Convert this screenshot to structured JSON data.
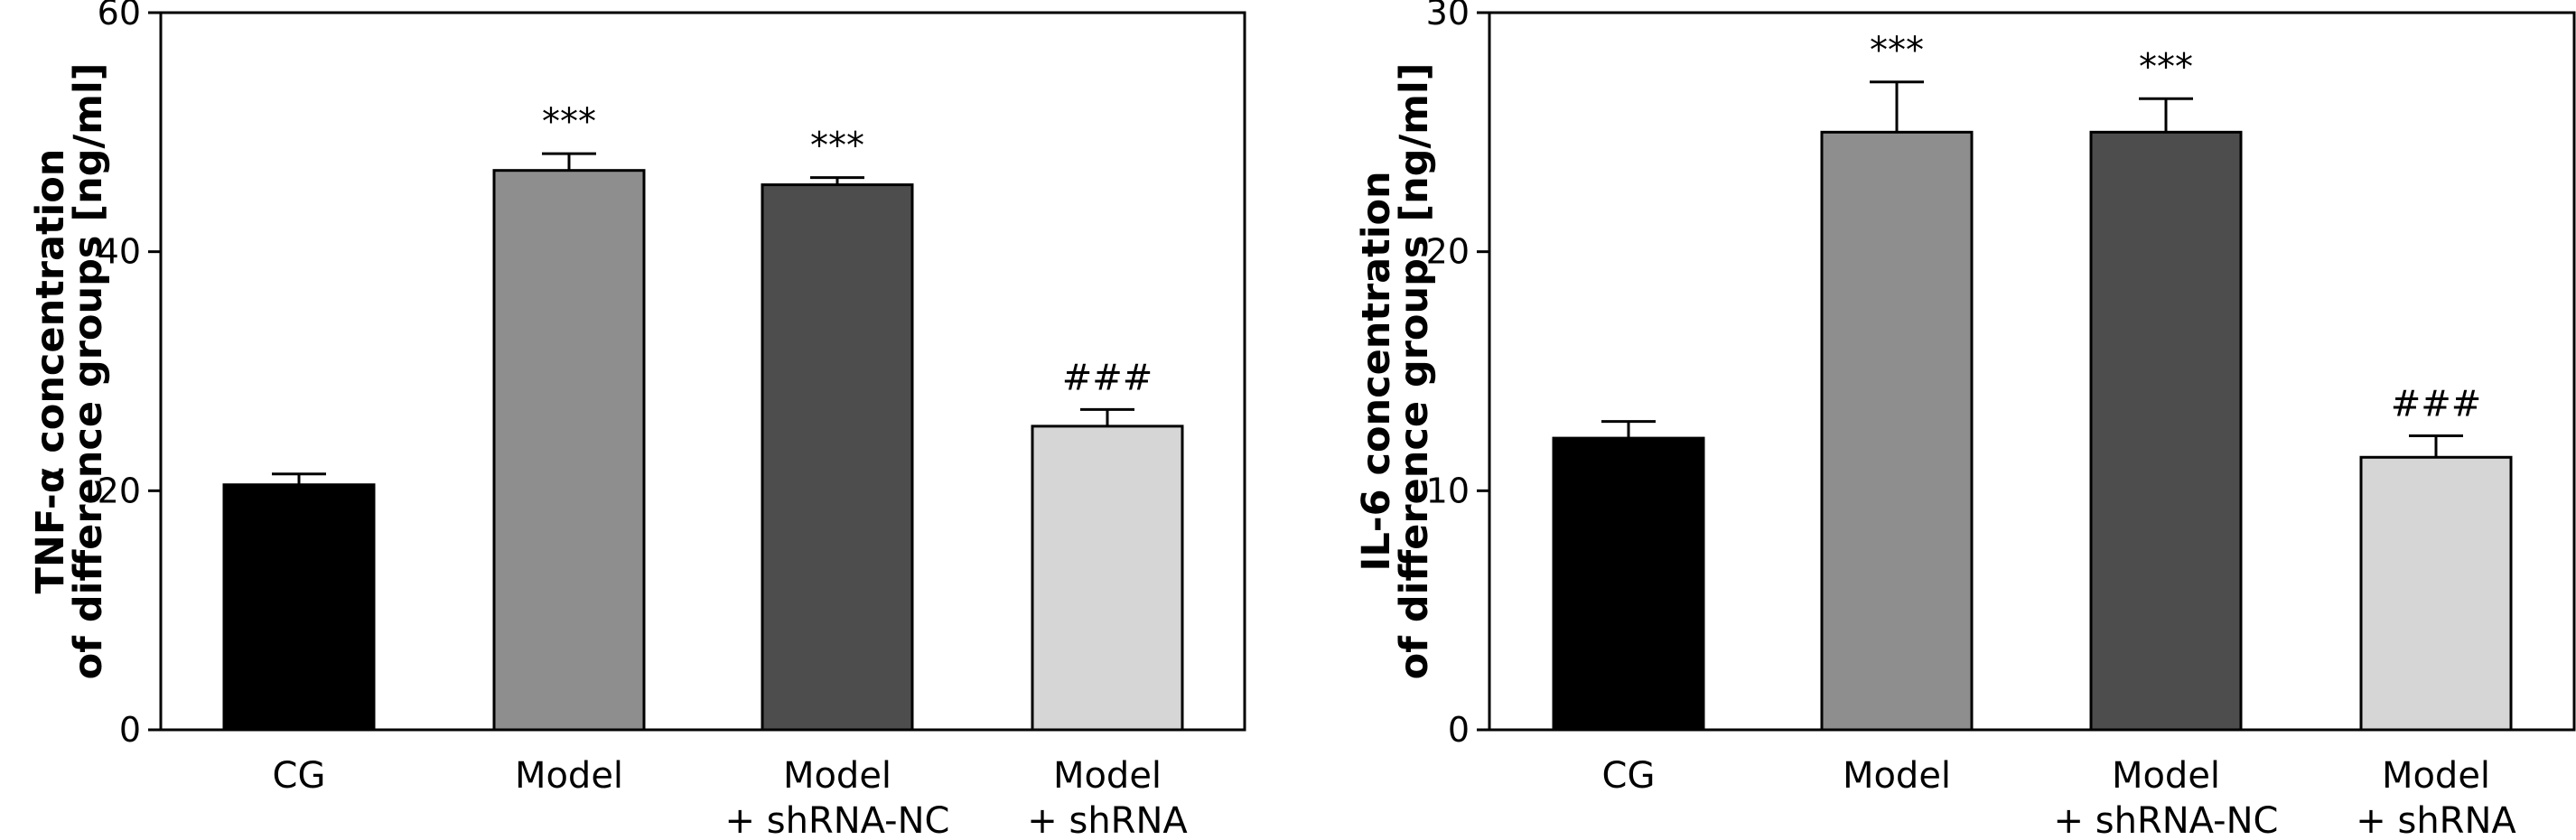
{
  "chart_data": [
    {
      "type": "bar",
      "categories": [
        [
          "CG"
        ],
        [
          "Model"
        ],
        [
          "Model",
          "+ shRNA-NC"
        ],
        [
          "Model",
          "+ shRNA"
        ]
      ],
      "values": [
        20.5,
        46.8,
        45.6,
        25.4
      ],
      "errors": [
        0.9,
        1.4,
        0.6,
        1.4
      ],
      "significance": [
        "",
        "***",
        "***",
        "###"
      ],
      "bar_colors": [
        "#000000",
        "#8e8e8e",
        "#4d4d4d",
        "#d6d6d6"
      ],
      "ylabel": [
        "TNF-α concentration",
        "of difference groups [ng/ml]"
      ],
      "ylim": [
        0,
        60
      ],
      "yticks": [
        "0",
        "20",
        "40",
        "60"
      ],
      "xlabel": "",
      "grid": false
    },
    {
      "type": "bar",
      "categories": [
        [
          "CG"
        ],
        [
          "Model"
        ],
        [
          "Model",
          "+ shRNA-NC"
        ],
        [
          "Model",
          "+ shRNA"
        ]
      ],
      "values": [
        12.2,
        25.0,
        25.0,
        11.4
      ],
      "errors": [
        0.7,
        2.1,
        1.4,
        0.9
      ],
      "significance": [
        "",
        "***",
        "***",
        "###"
      ],
      "bar_colors": [
        "#000000",
        "#8e8e8e",
        "#4d4d4d",
        "#d6d6d6"
      ],
      "ylabel": [
        "IL-6 concentration",
        "of difference groups [ng/ml]"
      ],
      "ylim": [
        0,
        30
      ],
      "yticks": [
        "0",
        "10",
        "20",
        "30"
      ],
      "xlabel": "",
      "grid": false
    }
  ]
}
